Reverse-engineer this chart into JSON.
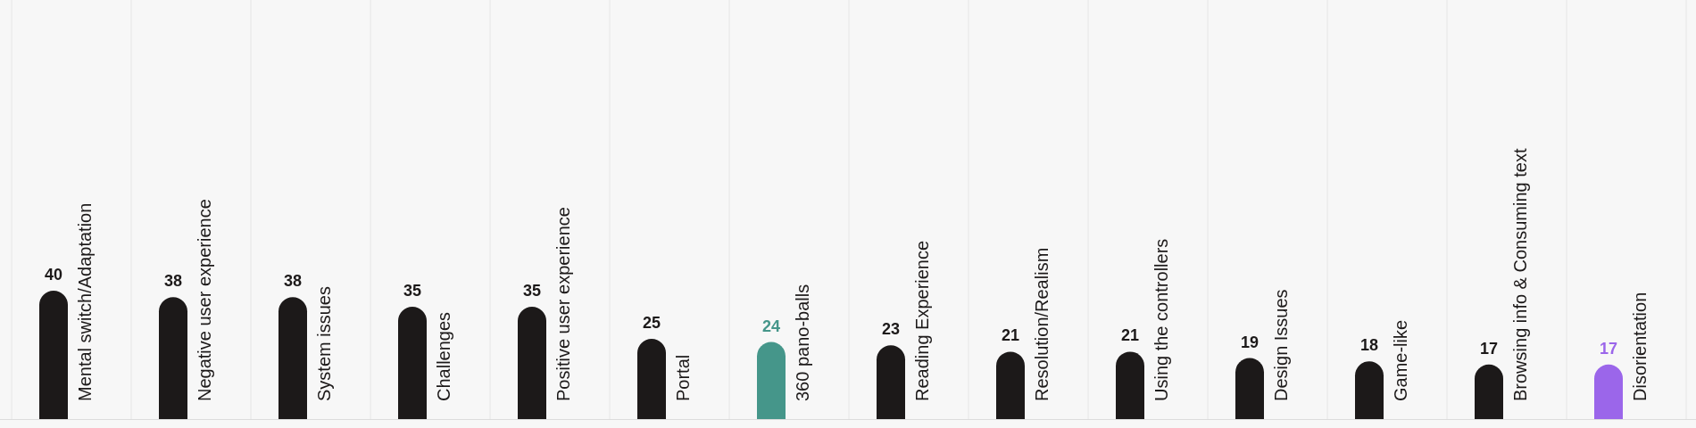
{
  "chart_data": {
    "type": "bar",
    "categories": [
      "Mental switch/Adaptation",
      "Negative user experience",
      "System issues",
      "Challenges",
      "Positive user experience",
      "Portal",
      "360 pano-balls",
      "Reading Experience",
      "Resolution/Realism",
      "Using the controllers",
      "Design Issues",
      "Game-like",
      "Browsing info & Consuming text",
      "Disorientation"
    ],
    "values": [
      40,
      38,
      38,
      35,
      35,
      25,
      24,
      23,
      21,
      21,
      19,
      18,
      17,
      17
    ],
    "colors": [
      "#1c1919",
      "#1c1919",
      "#1c1919",
      "#1c1919",
      "#1c1919",
      "#1c1919",
      "#45968a",
      "#1c1919",
      "#1c1919",
      "#1c1919",
      "#1c1919",
      "#1c1919",
      "#1c1919",
      "#9b66ea"
    ],
    "data_labels": true,
    "grid": "x"
  }
}
